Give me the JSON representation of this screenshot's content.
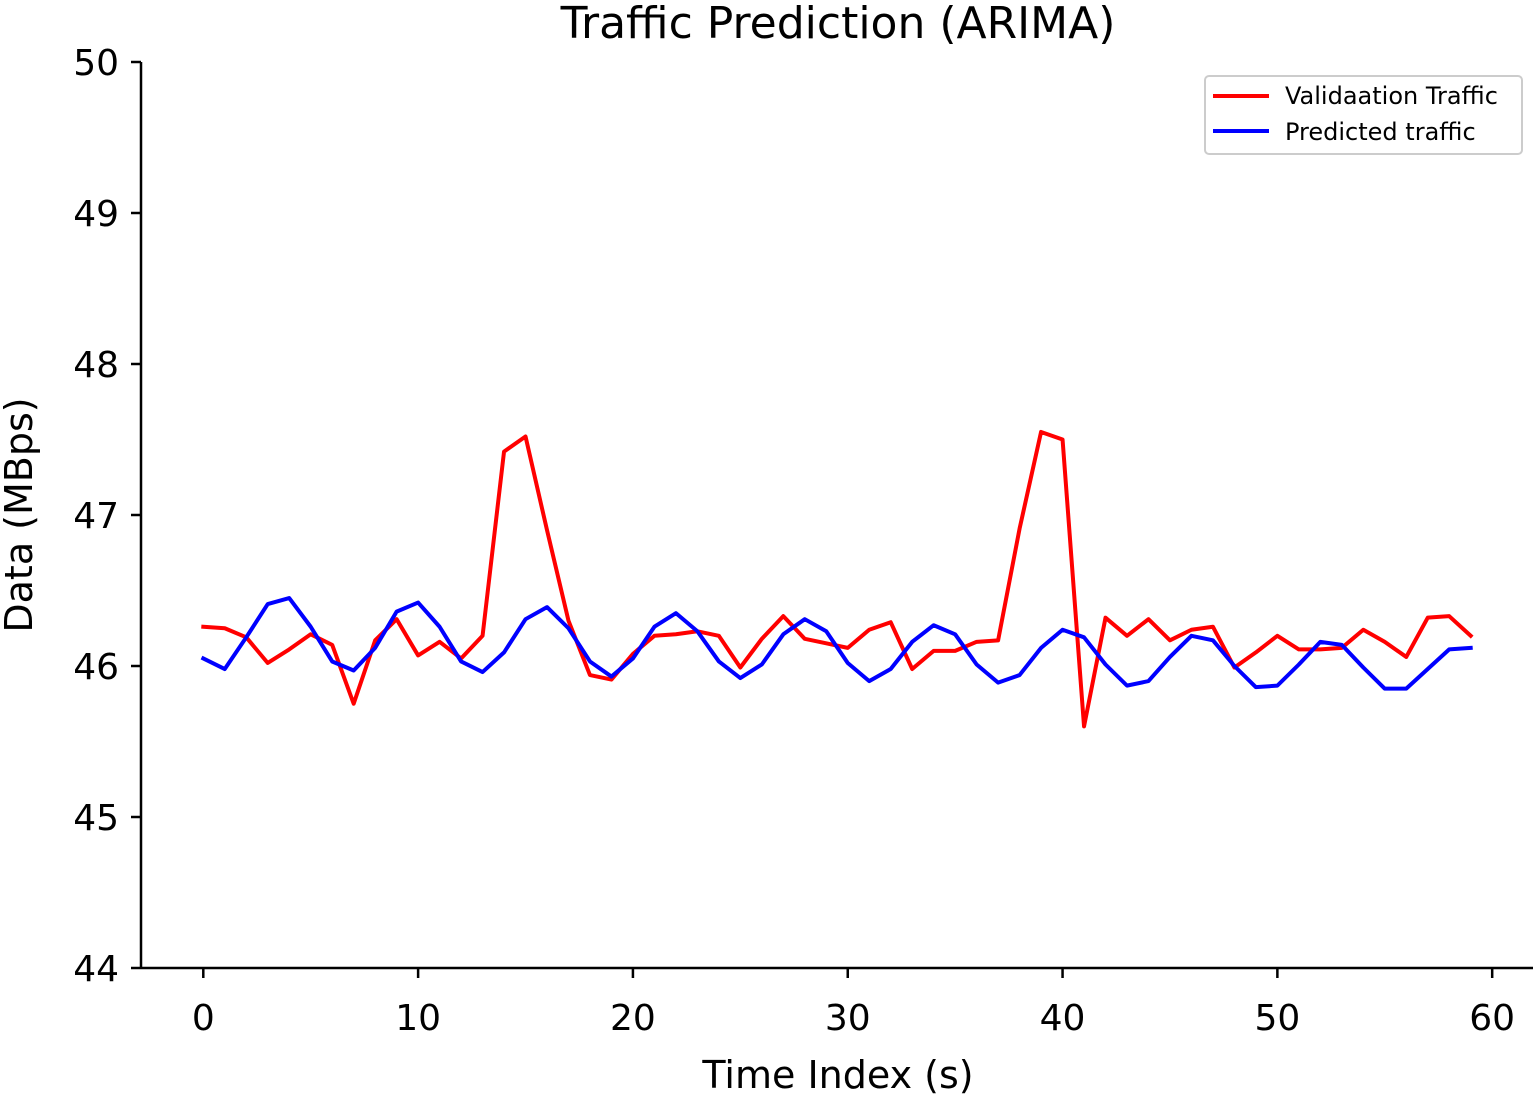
{
  "chart_data": {
    "type": "line",
    "title": "Traffic Prediction (ARIMA)",
    "xlabel": "Time Index (s)",
    "ylabel": "Data (MBps)",
    "xlim": [
      -2.9,
      61.9
    ],
    "ylim": [
      44,
      50
    ],
    "xticks": [
      0,
      10,
      20,
      30,
      40,
      50,
      60
    ],
    "yticks": [
      44,
      45,
      46,
      47,
      48,
      49,
      50
    ],
    "grid": false,
    "legend_position": "top-right",
    "x": [
      0,
      1,
      2,
      3,
      4,
      5,
      6,
      7,
      8,
      9,
      10,
      11,
      12,
      13,
      14,
      15,
      16,
      17,
      18,
      19,
      20,
      21,
      22,
      23,
      24,
      25,
      26,
      27,
      28,
      29,
      30,
      31,
      32,
      33,
      34,
      35,
      36,
      37,
      38,
      39,
      40,
      41,
      42,
      43,
      44,
      45,
      46,
      47,
      48,
      49,
      50,
      51,
      52,
      53,
      54,
      55,
      56,
      57,
      58,
      59
    ],
    "series": [
      {
        "name": "Validaation Traffic",
        "color": "#ff0000",
        "values": [
          46.26,
          46.25,
          46.19,
          46.02,
          46.11,
          46.21,
          46.14,
          45.75,
          46.17,
          46.31,
          46.07,
          46.16,
          46.05,
          46.2,
          47.42,
          47.52,
          46.9,
          46.3,
          45.94,
          45.91,
          46.08,
          46.2,
          46.21,
          46.23,
          46.2,
          45.99,
          46.18,
          46.33,
          46.18,
          46.15,
          46.12,
          46.24,
          46.29,
          45.98,
          46.1,
          46.1,
          46.16,
          46.17,
          46.91,
          47.55,
          47.5,
          45.6,
          46.32,
          46.2,
          46.31,
          46.17,
          46.24,
          46.26,
          45.99,
          46.09,
          46.2,
          46.11,
          46.11,
          46.12,
          46.24,
          46.16,
          46.06,
          46.32,
          46.33,
          46.2
        ]
      },
      {
        "name": "Predicted traffic",
        "color": "#0000ff",
        "values": [
          46.05,
          45.98,
          46.19,
          46.41,
          46.45,
          46.26,
          46.03,
          45.97,
          46.12,
          46.36,
          46.42,
          46.26,
          46.03,
          45.96,
          46.09,
          46.31,
          46.39,
          46.25,
          46.03,
          45.93,
          46.05,
          46.26,
          46.35,
          46.23,
          46.03,
          45.92,
          46.01,
          46.21,
          46.31,
          46.23,
          46.02,
          45.9,
          45.98,
          46.16,
          46.27,
          46.21,
          46.01,
          45.89,
          45.94,
          46.12,
          46.24,
          46.19,
          46.01,
          45.87,
          45.9,
          46.06,
          46.2,
          46.17,
          46.0,
          45.86,
          45.87,
          46.01,
          46.16,
          46.14,
          45.99,
          45.85,
          45.85,
          45.98,
          46.11,
          46.12
        ]
      }
    ]
  }
}
